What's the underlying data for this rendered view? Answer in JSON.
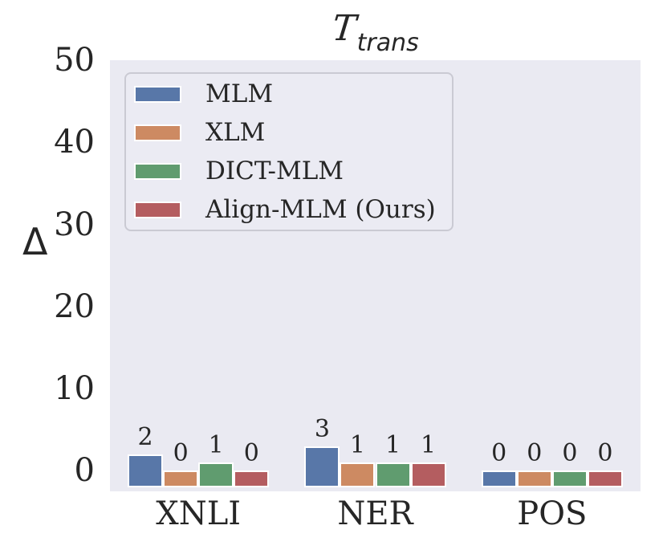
{
  "figure": {
    "title": {
      "main": "T",
      "sub": "trans"
    },
    "ylabel": "Δ",
    "background": "#ffffff",
    "plot_background": "#eaeaf2"
  },
  "chart_data": {
    "type": "bar",
    "title": "T_trans",
    "ylabel": "Δ",
    "xlabel": "",
    "categories": [
      "XNLI",
      "NER",
      "POS"
    ],
    "series": [
      {
        "name": "MLM",
        "color": "#5877a8",
        "values": [
          2,
          3,
          0
        ]
      },
      {
        "name": "XLM",
        "color": "#cd8a62",
        "values": [
          0,
          1,
          0
        ]
      },
      {
        "name": "DICT-MLM",
        "color": "#609c6f",
        "values": [
          1,
          1,
          0
        ]
      },
      {
        "name": "Align-MLM (Ours)",
        "color": "#b45d60",
        "values": [
          0,
          1,
          0
        ]
      }
    ],
    "bar_labels": true,
    "yticks": [
      0,
      10,
      20,
      30,
      40,
      50
    ],
    "ylim": [
      -2.5,
      50
    ],
    "bar_bottom": -2,
    "grid": false,
    "legend_position": "upper left",
    "edge_color": "#ffffff",
    "text_color": "#262626"
  }
}
